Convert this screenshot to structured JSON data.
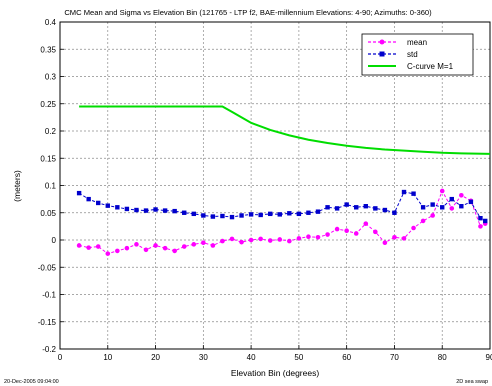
{
  "figure": {
    "footer_left": "20-Dec-2005 09:04:00",
    "footer_right": "2D sea swap"
  },
  "chart_data": {
    "type": "line",
    "title": "CMC Mean and Sigma vs Elevation Bin (121765 - LTP f2, BAE-millennium Elevations: 4-90; Azimuths: 0-360)",
    "xlabel": "Elevation Bin (degrees)",
    "ylabel": "(meters)",
    "xlim": [
      0,
      90
    ],
    "ylim": [
      -0.2,
      0.4
    ],
    "xticks": [
      0,
      10,
      20,
      30,
      40,
      50,
      60,
      70,
      80,
      90
    ],
    "yticks": [
      -0.2,
      -0.15,
      -0.1,
      -0.05,
      0,
      0.05,
      0.1,
      0.15,
      0.2,
      0.25,
      0.3,
      0.35,
      0.4
    ],
    "ytick_labels": [
      "-0.2",
      "-0.15",
      "-0.1",
      "-0.05",
      "0",
      "0.05",
      "0.1",
      "0.15",
      "0.2",
      "0.25",
      "0.3",
      "0.35",
      "0.4"
    ],
    "grid": true,
    "legend_position": "top-right",
    "series": [
      {
        "name": "mean",
        "color": "#ff00ff",
        "marker": "circle",
        "x": [
          4,
          6,
          8,
          10,
          12,
          14,
          16,
          18,
          20,
          22,
          24,
          26,
          28,
          30,
          32,
          34,
          36,
          38,
          40,
          42,
          44,
          46,
          48,
          50,
          52,
          54,
          56,
          58,
          60,
          62,
          64,
          66,
          68,
          70,
          72,
          74,
          76,
          78,
          80,
          82,
          84,
          86,
          88,
          89
        ],
        "y": [
          -0.01,
          -0.014,
          -0.012,
          -0.025,
          -0.02,
          -0.015,
          -0.008,
          -0.018,
          -0.01,
          -0.015,
          -0.02,
          -0.012,
          -0.008,
          -0.005,
          -0.01,
          -0.002,
          0.002,
          -0.004,
          0.0,
          0.002,
          -0.001,
          0.001,
          -0.002,
          0.003,
          0.006,
          0.005,
          0.01,
          0.02,
          0.017,
          0.012,
          0.03,
          0.015,
          -0.005,
          0.005,
          0.003,
          0.022,
          0.035,
          0.045,
          0.09,
          0.058,
          0.082,
          0.072,
          0.025,
          0.03
        ]
      },
      {
        "name": "std",
        "color": "#0000cc",
        "marker": "square",
        "x": [
          4,
          6,
          8,
          10,
          12,
          14,
          16,
          18,
          20,
          22,
          24,
          26,
          28,
          30,
          32,
          34,
          36,
          38,
          40,
          42,
          44,
          46,
          48,
          50,
          52,
          54,
          56,
          58,
          60,
          62,
          64,
          66,
          68,
          70,
          72,
          74,
          76,
          78,
          80,
          82,
          84,
          86,
          88,
          89
        ],
        "y": [
          0.086,
          0.075,
          0.068,
          0.063,
          0.06,
          0.057,
          0.055,
          0.054,
          0.056,
          0.054,
          0.053,
          0.05,
          0.048,
          0.045,
          0.043,
          0.044,
          0.042,
          0.045,
          0.047,
          0.046,
          0.048,
          0.047,
          0.049,
          0.048,
          0.05,
          0.052,
          0.06,
          0.058,
          0.065,
          0.06,
          0.062,
          0.058,
          0.055,
          0.05,
          0.088,
          0.085,
          0.06,
          0.065,
          0.06,
          0.075,
          0.062,
          0.07,
          0.04,
          0.035
        ]
      },
      {
        "name": "C-curve M=1",
        "color": "#00dd00",
        "marker": "none",
        "x": [
          4,
          34,
          36,
          38,
          40,
          44,
          48,
          52,
          56,
          60,
          64,
          68,
          72,
          76,
          80,
          84,
          90
        ],
        "y": [
          0.245,
          0.245,
          0.235,
          0.225,
          0.215,
          0.202,
          0.192,
          0.184,
          0.178,
          0.173,
          0.169,
          0.166,
          0.164,
          0.162,
          0.16,
          0.159,
          0.158
        ]
      }
    ]
  }
}
